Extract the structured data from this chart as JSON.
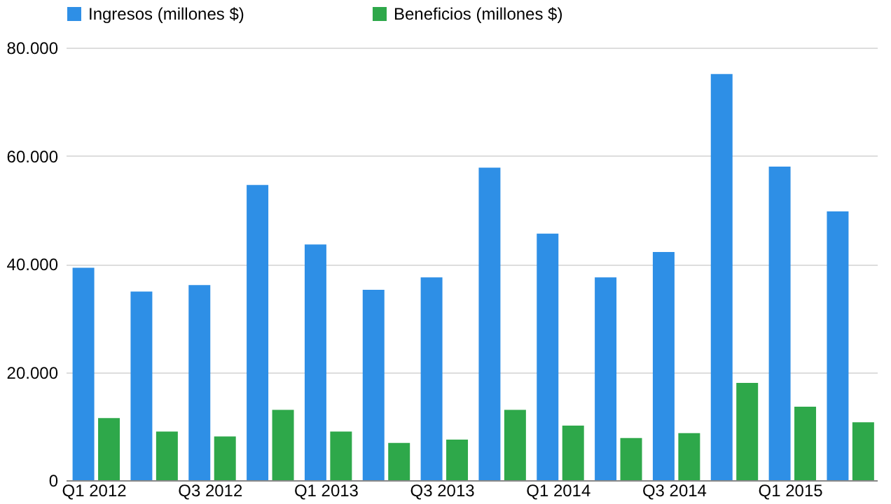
{
  "chart_data": {
    "type": "bar",
    "categories": [
      "Q1 2012",
      null,
      "Q3 2012",
      null,
      "Q1 2013",
      null,
      "Q3 2013",
      null,
      "Q1 2014",
      null,
      "Q3 2014",
      null,
      "Q1 2015",
      null
    ],
    "series": [
      {
        "name": "Ingresos (millones $)",
        "color": "#2e8fe6",
        "values": [
          39300,
          34900,
          36100,
          54600,
          43600,
          35200,
          37500,
          57800,
          45600,
          37500,
          42200,
          75100,
          58000,
          49700
        ]
      },
      {
        "name": "Beneficios (millones $)",
        "color": "#2ea84a",
        "values": [
          11500,
          9000,
          8100,
          13000,
          9000,
          6900,
          7500,
          13000,
          10100,
          7800,
          8700,
          18000,
          13600,
          10700
        ]
      }
    ],
    "ylim": [
      0,
      80000
    ],
    "yticks": [
      {
        "value": 0,
        "label": "0"
      },
      {
        "value": 20000,
        "label": "20.000"
      },
      {
        "value": 40000,
        "label": "40.000"
      },
      {
        "value": 60000,
        "label": "60.000"
      },
      {
        "value": 80000,
        "label": "80.000"
      }
    ],
    "grid": "y",
    "legend": "top"
  }
}
